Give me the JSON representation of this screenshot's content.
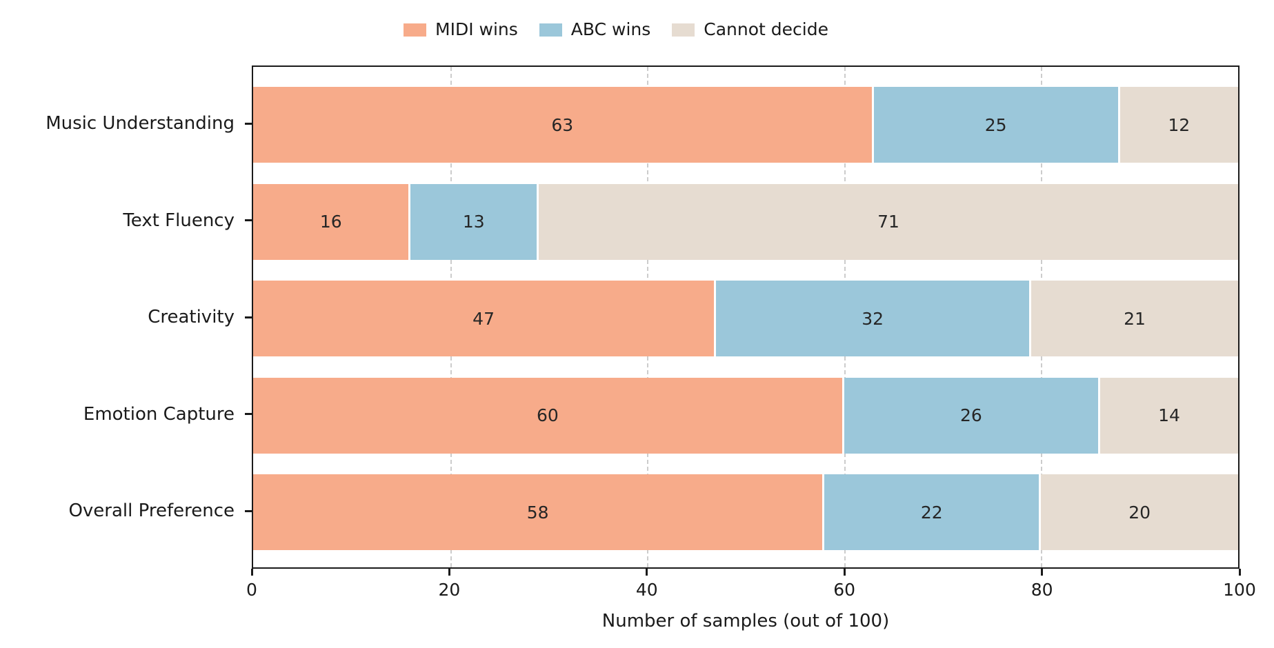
{
  "chart_data": {
    "type": "bar",
    "orientation": "horizontal",
    "stacked": true,
    "categories": [
      "Music Understanding",
      "Text Fluency",
      "Creativity",
      "Emotion Capture",
      "Overall Preference"
    ],
    "series": [
      {
        "name": "MIDI wins",
        "color": "#F7AB8A",
        "values": [
          63,
          16,
          47,
          60,
          58
        ]
      },
      {
        "name": "ABC wins",
        "color": "#9BC7DA",
        "values": [
          25,
          13,
          32,
          26,
          22
        ]
      },
      {
        "name": "Cannot decide",
        "color": "#E6DCD1",
        "values": [
          12,
          71,
          21,
          14,
          20
        ]
      }
    ],
    "xlabel": "Number of samples (out of 100)",
    "xlim": [
      0,
      100
    ],
    "xticks": [
      0,
      20,
      40,
      60,
      80,
      100
    ],
    "grid": "vertical dashed gridlines at 20, 40, 60, 80 behind bars",
    "legend_position": "top center, horizontal, no frame",
    "bar_labels": "value shown centered inside each segment"
  },
  "style": {
    "spine_color": "#1a1a1a",
    "grid_color": "#cccccc",
    "bar_label_color": "#262626",
    "background": "#ffffff",
    "segment_gap_color": "#ffffff"
  }
}
